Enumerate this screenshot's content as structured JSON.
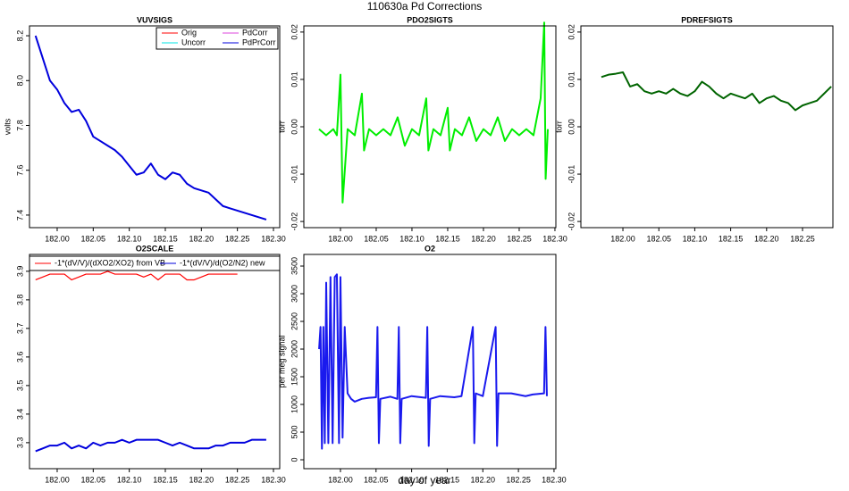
{
  "title": "110630a   Pd Corrections",
  "xlabel": "day of year",
  "chart_data": [
    {
      "type": "line",
      "title": "VUVSIGS",
      "ylabel": "volts",
      "legend": "top-right",
      "x": [
        181.97,
        181.98,
        181.99,
        182.0,
        182.01,
        182.02,
        182.03,
        182.04,
        182.05,
        182.06,
        182.07,
        182.08,
        182.09,
        182.1,
        182.11,
        182.12,
        182.13,
        182.14,
        182.15,
        182.16,
        182.17,
        182.18,
        182.19,
        182.2,
        182.21,
        182.22,
        182.23,
        182.24,
        182.25,
        182.26,
        182.27,
        182.28,
        182.29
      ],
      "series": [
        {
          "name": "Orig",
          "color": "#ff0000",
          "values": [
            8.2,
            8.1,
            8.0,
            7.96,
            7.9,
            7.86,
            7.87,
            7.82,
            7.75,
            7.73,
            7.71,
            7.69,
            7.66,
            7.62,
            7.58,
            7.59,
            7.63,
            7.58,
            7.56,
            7.59,
            7.58,
            7.54,
            7.52,
            7.51,
            7.5,
            7.47,
            7.44,
            7.43,
            7.42,
            7.41,
            7.4,
            7.39,
            7.38
          ]
        },
        {
          "name": "Uncorr",
          "color": "#00e5e5",
          "values": [
            8.2,
            8.1,
            8.0,
            7.96,
            7.9,
            7.86,
            7.87,
            7.82,
            7.75,
            7.73,
            7.71,
            7.69,
            7.66,
            7.62,
            7.58,
            7.59,
            7.63,
            7.58,
            7.56,
            7.59,
            7.58,
            7.54,
            7.52,
            7.51,
            7.5,
            7.47,
            7.44,
            7.43,
            7.42,
            7.41,
            7.4,
            7.39,
            7.38
          ]
        },
        {
          "name": "PdCorr",
          "color": "#dd44dd",
          "values": [
            8.2,
            8.1,
            8.0,
            7.96,
            7.9,
            7.86,
            7.87,
            7.82,
            7.75,
            7.73,
            7.71,
            7.69,
            7.66,
            7.62,
            7.58,
            7.59,
            7.63,
            7.58,
            7.56,
            7.59,
            7.58,
            7.54,
            7.52,
            7.51,
            7.5,
            7.47,
            7.44,
            7.43,
            7.42,
            7.41,
            7.4,
            7.39,
            7.38
          ]
        },
        {
          "name": "PdPrCorr",
          "color": "#0000dd",
          "values": [
            8.2,
            8.1,
            8.0,
            7.96,
            7.9,
            7.86,
            7.87,
            7.82,
            7.75,
            7.73,
            7.71,
            7.69,
            7.66,
            7.62,
            7.58,
            7.59,
            7.63,
            7.58,
            7.56,
            7.59,
            7.58,
            7.54,
            7.52,
            7.51,
            7.5,
            7.47,
            7.44,
            7.43,
            7.42,
            7.41,
            7.4,
            7.39,
            7.38
          ]
        }
      ],
      "xlim": [
        181.9616,
        182.3087
      ],
      "ylim": [
        7.344,
        8.244
      ],
      "xticks": [
        {
          "value": 182,
          "label": "182.00"
        },
        182.05,
        {
          "value": 182.1,
          "label": "182.10"
        },
        182.15,
        {
          "value": 182.2,
          "label": "182.20"
        },
        182.25,
        {
          "value": 182.3,
          "label": "182.30"
        }
      ],
      "yticks": [
        7.4,
        7.6,
        7.8,
        {
          "value": 8,
          "label": "8.0"
        },
        8.2
      ]
    },
    {
      "type": "line",
      "title": "PDO2SIGTS",
      "ylabel": "torr",
      "x": [
        181.97,
        181.98,
        181.99,
        181.995,
        182.0,
        182.003,
        182.01,
        182.02,
        182.03,
        182.033,
        182.04,
        182.05,
        182.06,
        182.07,
        182.08,
        182.09,
        182.1,
        182.11,
        182.12,
        182.123,
        182.13,
        182.14,
        182.15,
        182.153,
        182.16,
        182.17,
        182.18,
        182.19,
        182.2,
        182.21,
        182.22,
        182.23,
        182.24,
        182.25,
        182.26,
        182.27,
        182.28,
        182.285,
        182.287,
        182.29
      ],
      "series": [
        {
          "color": "#00ee00",
          "values": [
            -0.0005,
            -0.0018,
            -0.0005,
            -0.0018,
            0.011,
            -0.016,
            -0.0005,
            -0.0018,
            0.007,
            -0.005,
            -0.0005,
            -0.0018,
            -0.0005,
            -0.0018,
            0.002,
            -0.004,
            -0.0005,
            -0.0018,
            0.006,
            -0.005,
            -0.0005,
            -0.0018,
            0.004,
            -0.005,
            -0.0005,
            -0.0018,
            0.002,
            -0.003,
            -0.0005,
            -0.0018,
            0.002,
            -0.003,
            -0.0005,
            -0.0018,
            -0.0005,
            -0.0018,
            0.006,
            0.022,
            -0.011,
            -0.0005
          ]
        }
      ],
      "xlim": [
        181.9488,
        182.3013
      ],
      "ylim": [
        -0.0213,
        0.0213
      ],
      "xticks": [
        {
          "value": 182,
          "label": "182.00"
        },
        182.05,
        {
          "value": 182.1,
          "label": "182.10"
        },
        182.15,
        {
          "value": 182.2,
          "label": "182.20"
        },
        182.25,
        {
          "value": 182.3,
          "label": "182.30"
        }
      ],
      "yticks": [
        -0.02,
        -0.01,
        {
          "value": 0,
          "label": "0.00"
        },
        0.01,
        0.02
      ]
    },
    {
      "type": "line",
      "title": "PDREFSIGTS",
      "ylabel": "torr",
      "x": [
        181.97,
        181.98,
        181.99,
        182.0,
        182.01,
        182.02,
        182.03,
        182.04,
        182.05,
        182.06,
        182.07,
        182.08,
        182.09,
        182.1,
        182.11,
        182.12,
        182.13,
        182.14,
        182.15,
        182.16,
        182.17,
        182.18,
        182.19,
        182.2,
        182.21,
        182.22,
        182.23,
        182.24,
        182.25,
        182.26,
        182.27,
        182.28,
        182.29
      ],
      "series": [
        {
          "color": "#006400",
          "values": [
            0.0105,
            0.011,
            0.0112,
            0.0115,
            0.0085,
            0.009,
            0.0075,
            0.007,
            0.0075,
            0.007,
            0.008,
            0.007,
            0.0065,
            0.0075,
            0.0095,
            0.0085,
            0.007,
            0.006,
            0.007,
            0.0065,
            0.006,
            0.007,
            0.005,
            0.006,
            0.0065,
            0.0055,
            0.005,
            0.0035,
            0.0045,
            0.005,
            0.0055,
            0.007,
            0.0085
          ]
        }
      ],
      "xlim": [
        181.9415,
        182.2923
      ],
      "ylim": [
        -0.0213,
        0.0213
      ],
      "xticks": [
        {
          "value": 182,
          "label": "182.00"
        },
        182.05,
        {
          "value": 182.1,
          "label": "182.10"
        },
        182.15,
        {
          "value": 182.2,
          "label": "182.20"
        },
        182.25
      ],
      "yticks": [
        -0.02,
        -0.01,
        {
          "value": 0,
          "label": "0.00"
        },
        0.01,
        0.02
      ]
    },
    {
      "type": "line",
      "title": "O2SCALE",
      "legend": "top",
      "x": [
        181.97,
        181.98,
        181.99,
        182.0,
        182.01,
        182.02,
        182.03,
        182.04,
        182.05,
        182.06,
        182.07,
        182.08,
        182.09,
        182.1,
        182.11,
        182.12,
        182.13,
        182.14,
        182.15,
        182.16,
        182.17,
        182.18,
        182.19,
        182.2,
        182.21,
        182.22,
        182.23,
        182.24,
        182.25,
        182.26,
        182.27,
        182.28,
        182.29
      ],
      "series": [
        {
          "name": "-1*(dV/V)/(dXO2/XO2) from VB",
          "color": "#ff0000",
          "values": [
            3.87,
            3.88,
            3.89,
            3.89,
            3.89,
            3.87,
            3.88,
            3.89,
            3.89,
            3.89,
            3.9,
            3.89,
            3.89,
            3.89,
            3.89,
            3.88,
            3.89,
            3.87,
            3.89,
            3.89,
            3.89,
            3.87,
            3.87,
            3.88,
            3.89,
            3.89,
            3.89,
            3.89,
            3.89,
            null,
            null,
            null,
            null
          ]
        },
        {
          "name": "-1*(dV/V)/d(O2/N2) new",
          "color": "#0000dd",
          "values": [
            3.27,
            3.28,
            3.29,
            3.29,
            3.3,
            3.28,
            3.29,
            3.28,
            3.3,
            3.29,
            3.3,
            3.3,
            3.31,
            3.3,
            3.31,
            3.31,
            3.31,
            3.31,
            3.3,
            3.29,
            3.3,
            3.29,
            3.28,
            3.28,
            3.28,
            3.29,
            3.29,
            3.3,
            3.3,
            3.3,
            3.31,
            3.31,
            3.31
          ]
        }
      ],
      "xlim": [
        181.9616,
        182.3087
      ],
      "ylim": [
        3.209,
        3.959
      ],
      "xticks": [
        {
          "value": 182,
          "label": "182.00"
        },
        182.05,
        {
          "value": 182.1,
          "label": "182.10"
        },
        182.15,
        {
          "value": 182.2,
          "label": "182.20"
        },
        182.25,
        {
          "value": 182.3,
          "label": "182.30"
        }
      ],
      "yticks": [
        3.3,
        3.4,
        3.5,
        3.6,
        3.7,
        3.8,
        3.9
      ]
    },
    {
      "type": "line",
      "title": "O2",
      "ylabel": "per meg signal",
      "x": [
        181.97,
        181.972,
        181.974,
        181.976,
        181.978,
        181.98,
        181.983,
        181.986,
        181.989,
        181.992,
        181.995,
        181.998,
        182.0,
        182.003,
        182.006,
        182.01,
        182.015,
        182.02,
        182.03,
        182.04,
        182.05,
        182.052,
        182.054,
        182.056,
        182.07,
        182.08,
        182.082,
        182.084,
        182.086,
        182.1,
        182.12,
        182.122,
        182.124,
        182.126,
        182.14,
        182.16,
        182.17,
        182.186,
        182.188,
        182.19,
        182.2,
        182.218,
        182.22,
        182.222,
        182.24,
        182.26,
        182.27,
        182.286,
        182.288,
        182.29
      ],
      "series": [
        {
          "color": "#1a1aee",
          "values": [
            2000,
            2400,
            200,
            2400,
            300,
            3200,
            300,
            3300,
            300,
            3300,
            3350,
            300,
            3300,
            400,
            2400,
            1200,
            1100,
            1050,
            1100,
            1120,
            1130,
            2400,
            300,
            1100,
            1140,
            1100,
            2400,
            300,
            1100,
            1150,
            1120,
            2400,
            250,
            1100,
            1150,
            1130,
            1150,
            2400,
            300,
            1200,
            1150,
            2400,
            250,
            1200,
            1200,
            1150,
            1180,
            1200,
            2400,
            1150
          ]
        }
      ],
      "xlim": [
        181.9486,
        182.3026
      ],
      "ylim": [
        -161,
        3710
      ],
      "xticks": [
        {
          "value": 182,
          "label": "182.00"
        },
        182.05,
        {
          "value": 182.1,
          "label": "182.10"
        },
        182.15,
        {
          "value": 182.2,
          "label": "182.20"
        },
        182.25,
        {
          "value": 182.3,
          "label": "182.30"
        }
      ],
      "yticks": [
        0,
        500,
        1000,
        1500,
        2000,
        2500,
        3000,
        3500
      ]
    }
  ]
}
